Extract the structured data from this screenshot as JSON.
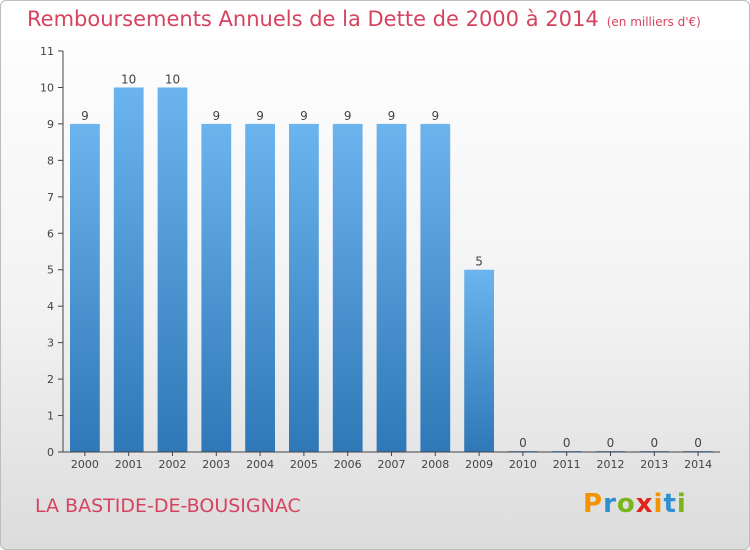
{
  "header": {
    "title": "Remboursements Annuels de la Dette de 2000 à 2014",
    "subtitle": "(en milliers d'€)"
  },
  "footer": {
    "commune": "LA BASTIDE-DE-BOUSIGNAC",
    "brand": {
      "letters": [
        "P",
        "r",
        "o",
        "x",
        "i",
        "t",
        "i"
      ],
      "colors": [
        "#f29400",
        "#2f8fd0",
        "#7ab51d",
        "#e2231a",
        "#f29400",
        "#2f8fd0",
        "#7ab51d"
      ]
    }
  },
  "chart_data": {
    "type": "bar",
    "categories": [
      "2000",
      "2001",
      "2002",
      "2003",
      "2004",
      "2005",
      "2006",
      "2007",
      "2008",
      "2009",
      "2010",
      "2011",
      "2012",
      "2013",
      "2014"
    ],
    "values": [
      9,
      10,
      10,
      9,
      9,
      9,
      9,
      9,
      9,
      5,
      0,
      0,
      0,
      0,
      0
    ],
    "data_labels": [
      "9",
      "10",
      "10",
      "9",
      "9",
      "9",
      "9",
      "9",
      "9",
      "5",
      "0",
      "0",
      "0",
      "0",
      "0"
    ],
    "yticks": [
      0,
      1,
      2,
      3,
      4,
      5,
      6,
      7,
      8,
      9,
      10,
      11
    ],
    "ylim": [
      0,
      11
    ],
    "grid": false,
    "bar_color_top": "#6cb4ee",
    "bar_color_bottom": "#2f78b7",
    "axis_color": "#444444"
  }
}
